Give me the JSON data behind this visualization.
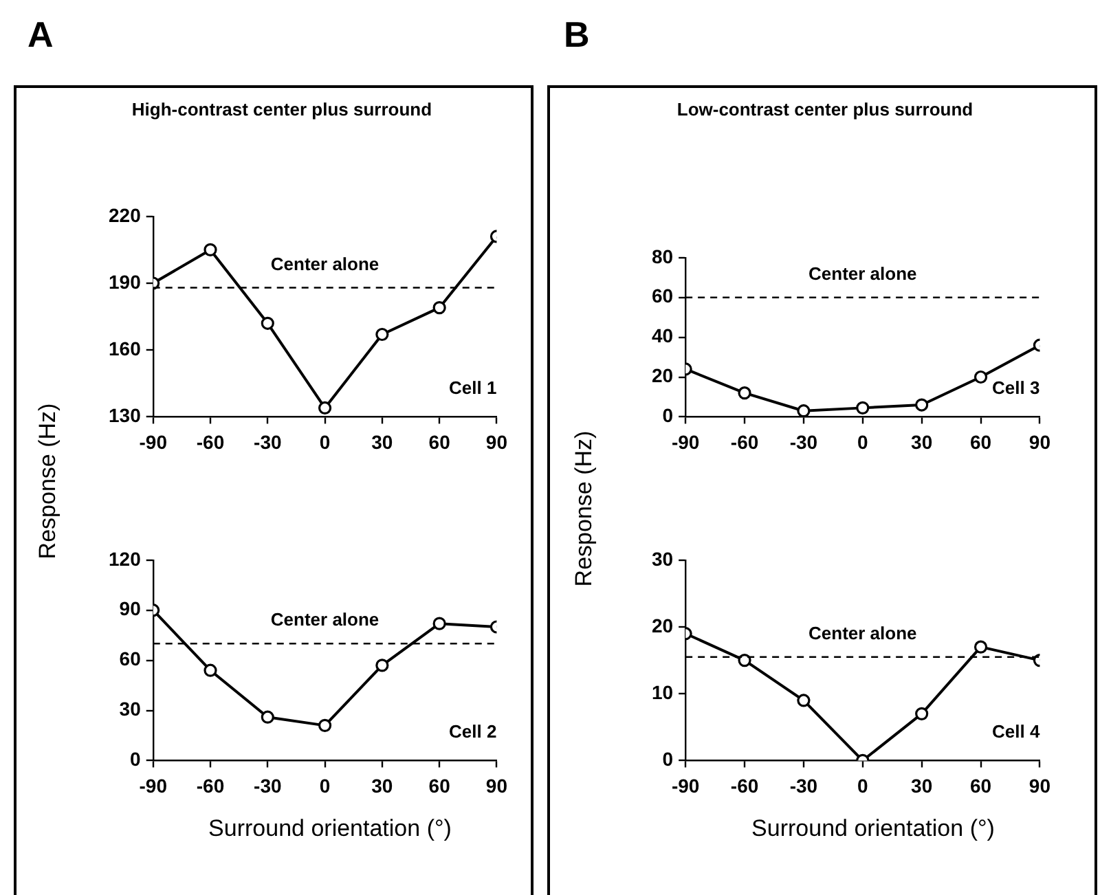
{
  "chart_data": [
    {
      "type": "line",
      "title": "A",
      "subtitle": "High-contrast center plus surround",
      "ylabel": "Response (Hz)",
      "x": [
        -90,
        -60,
        -30,
        0,
        30,
        60,
        90
      ],
      "xlim": [
        -90,
        90
      ],
      "xticks": [
        -90,
        -60,
        -30,
        0,
        30,
        60,
        90
      ],
      "ylim": [
        130,
        220
      ],
      "yticks": [
        130,
        160,
        190,
        220
      ],
      "marker": "circle",
      "line_style": "solid",
      "grid": false,
      "legend": false,
      "series": [
        {
          "color": "#000000",
          "values": [
            190,
            205,
            172,
            134,
            167,
            179,
            211
          ]
        }
      ],
      "ref_lines": [
        {
          "axis": "y",
          "value": 188,
          "label": "Center alone",
          "line_style": "dashed",
          "color": "#000000"
        }
      ],
      "annotations": [
        "Cell 1"
      ]
    },
    {
      "type": "line",
      "xlabel": "Surround orientation (°)",
      "x": [
        -90,
        -60,
        -30,
        0,
        30,
        60,
        90
      ],
      "xlim": [
        -90,
        90
      ],
      "xticks": [
        -90,
        -60,
        -30,
        0,
        30,
        60,
        90
      ],
      "ylim": [
        0,
        120
      ],
      "yticks": [
        0,
        30,
        60,
        90,
        120
      ],
      "marker": "circle",
      "line_style": "solid",
      "grid": false,
      "legend": false,
      "series": [
        {
          "color": "#000000",
          "values": [
            90,
            54,
            26,
            21,
            57,
            82,
            80
          ]
        }
      ],
      "ref_lines": [
        {
          "axis": "y",
          "value": 70,
          "label": "Center alone",
          "line_style": "dashed",
          "color": "#000000"
        }
      ],
      "annotations": [
        "Cell 2"
      ]
    },
    {
      "type": "line",
      "title": "B",
      "subtitle": "Low-contrast center plus surround",
      "ylabel": "Response (Hz)",
      "x": [
        -90,
        -60,
        -30,
        0,
        30,
        60,
        90
      ],
      "xlim": [
        -90,
        90
      ],
      "xticks": [
        -90,
        -60,
        -30,
        0,
        30,
        60,
        90
      ],
      "ylim": [
        0,
        80
      ],
      "yticks": [
        0,
        20,
        40,
        60,
        80
      ],
      "marker": "circle",
      "line_style": "solid",
      "grid": false,
      "legend": false,
      "series": [
        {
          "color": "#000000",
          "values": [
            24,
            12,
            3,
            4.5,
            6,
            20,
            36
          ]
        }
      ],
      "ref_lines": [
        {
          "axis": "y",
          "value": 60,
          "label": "Center alone",
          "line_style": "dashed",
          "color": "#000000"
        }
      ],
      "annotations": [
        "Cell 3"
      ]
    },
    {
      "type": "line",
      "xlabel": "Surround orientation (°)",
      "x": [
        -90,
        -60,
        -30,
        0,
        30,
        60,
        90
      ],
      "xlim": [
        -90,
        90
      ],
      "xticks": [
        -90,
        -60,
        -30,
        0,
        30,
        60,
        90
      ],
      "ylim": [
        0,
        30
      ],
      "yticks": [
        0,
        10,
        20,
        30
      ],
      "marker": "circle",
      "line_style": "solid",
      "grid": false,
      "legend": false,
      "series": [
        {
          "color": "#000000",
          "values": [
            19,
            15,
            9,
            0,
            7,
            17,
            15
          ]
        }
      ],
      "ref_lines": [
        {
          "axis": "y",
          "value": 15.5,
          "label": "Center alone",
          "line_style": "dashed",
          "color": "#000000"
        }
      ],
      "annotations": [
        "Cell 4"
      ]
    }
  ]
}
